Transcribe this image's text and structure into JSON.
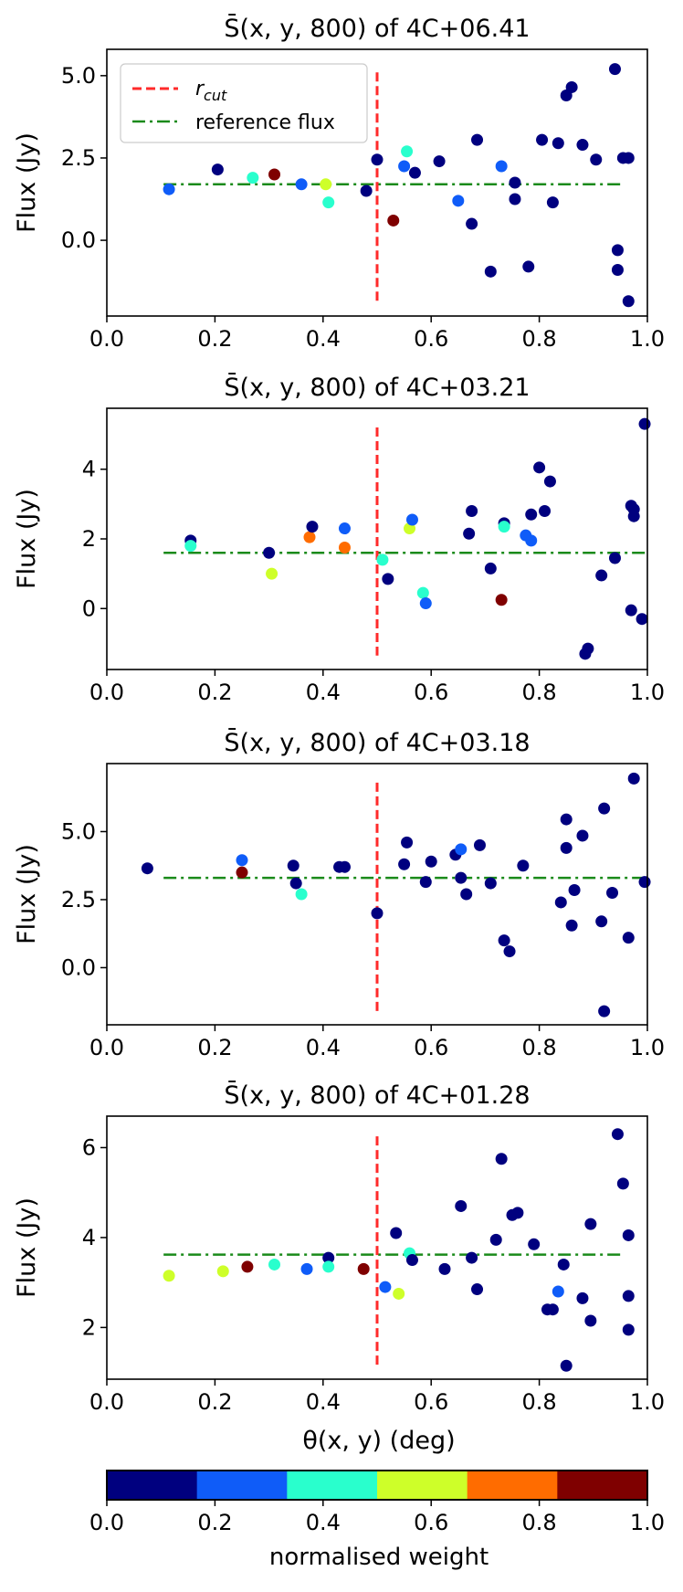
{
  "figure": {
    "xlabel": "θ(x, y) (deg)",
    "legend": {
      "rcut_label": "r",
      "rcut_sub": "cut",
      "ref_label": "reference flux"
    },
    "colorbar": {
      "label": "normalised weight",
      "ticks": [
        "0.0",
        "0.2",
        "0.4",
        "0.6",
        "0.8",
        "1.0"
      ],
      "colors": [
        "#00007f",
        "#0f5cf8",
        "#29ffcd",
        "#ceff29",
        "#ff6c00",
        "#7f0000"
      ]
    },
    "colors": {
      "rcut": "#ff2a2a",
      "reference": "#1a8a1a"
    }
  },
  "chart_data": [
    {
      "type": "scatter",
      "title": "S̄(x, y, 800) of 4C+06.41",
      "ylabel": "Flux (Jy)",
      "xlim": [
        0,
        1
      ],
      "ylim": [
        -2.3,
        5.8
      ],
      "xticks": [
        "0.0",
        "0.2",
        "0.4",
        "0.6",
        "0.8",
        "1.0"
      ],
      "xtick_values": [
        0,
        0.2,
        0.4,
        0.6,
        0.8,
        1.0
      ],
      "yticks": [
        "0.0",
        "2.5",
        "5.0"
      ],
      "ytick_values": [
        0,
        2.5,
        5.0
      ],
      "rcut": 0.5,
      "rcut_range": [
        -1.9,
        5.1
      ],
      "reference_flux": 1.7,
      "reference_range": [
        0.105,
        0.958
      ],
      "show_legend": true,
      "points": [
        {
          "x": 0.115,
          "y": 1.55,
          "w": 0.2
        },
        {
          "x": 0.205,
          "y": 2.15,
          "w": 0.0
        },
        {
          "x": 0.27,
          "y": 1.9,
          "w": 0.4
        },
        {
          "x": 0.31,
          "y": 2.0,
          "w": 1.0
        },
        {
          "x": 0.36,
          "y": 1.7,
          "w": 0.2
        },
        {
          "x": 0.405,
          "y": 1.7,
          "w": 0.6
        },
        {
          "x": 0.41,
          "y": 1.15,
          "w": 0.4
        },
        {
          "x": 0.48,
          "y": 1.5,
          "w": 0.0
        },
        {
          "x": 0.5,
          "y": 2.45,
          "w": 0.0
        },
        {
          "x": 0.53,
          "y": 0.6,
          "w": 1.0
        },
        {
          "x": 0.55,
          "y": 2.25,
          "w": 0.2
        },
        {
          "x": 0.555,
          "y": 2.7,
          "w": 0.4
        },
        {
          "x": 0.57,
          "y": 2.05,
          "w": 0.0
        },
        {
          "x": 0.615,
          "y": 2.4,
          "w": 0.0
        },
        {
          "x": 0.65,
          "y": 1.2,
          "w": 0.2
        },
        {
          "x": 0.675,
          "y": 0.5,
          "w": 0.0
        },
        {
          "x": 0.685,
          "y": 3.05,
          "w": 0.0
        },
        {
          "x": 0.71,
          "y": -0.95,
          "w": 0.0
        },
        {
          "x": 0.73,
          "y": 2.25,
          "w": 0.2
        },
        {
          "x": 0.755,
          "y": 1.75,
          "w": 0.0
        },
        {
          "x": 0.755,
          "y": 1.25,
          "w": 0.0
        },
        {
          "x": 0.78,
          "y": -0.8,
          "w": 0.0
        },
        {
          "x": 0.805,
          "y": 3.05,
          "w": 0.0
        },
        {
          "x": 0.825,
          "y": 1.15,
          "w": 0.0
        },
        {
          "x": 0.835,
          "y": 2.95,
          "w": 0.0
        },
        {
          "x": 0.85,
          "y": 4.4,
          "w": 0.0
        },
        {
          "x": 0.86,
          "y": 4.65,
          "w": 0.0
        },
        {
          "x": 0.88,
          "y": 2.9,
          "w": 0.0
        },
        {
          "x": 0.905,
          "y": 2.45,
          "w": 0.0
        },
        {
          "x": 0.94,
          "y": 5.2,
          "w": 0.0
        },
        {
          "x": 0.945,
          "y": -0.3,
          "w": 0.0
        },
        {
          "x": 0.945,
          "y": -0.9,
          "w": 0.0
        },
        {
          "x": 0.955,
          "y": 2.5,
          "w": 0.0
        },
        {
          "x": 0.965,
          "y": 2.5,
          "w": 0.0
        },
        {
          "x": 0.965,
          "y": -1.85,
          "w": 0.0
        }
      ]
    },
    {
      "type": "scatter",
      "title": "S̄(x, y, 800) of 4C+03.21",
      "ylabel": "Flux (Jy)",
      "xlim": [
        0,
        1
      ],
      "ylim": [
        -1.75,
        5.75
      ],
      "xticks": [
        "0.0",
        "0.2",
        "0.4",
        "0.6",
        "0.8",
        "1.0"
      ],
      "xtick_values": [
        0,
        0.2,
        0.4,
        0.6,
        0.8,
        1.0
      ],
      "yticks": [
        "0",
        "2",
        "4"
      ],
      "ytick_values": [
        0,
        2,
        4
      ],
      "rcut": 0.5,
      "rcut_range": [
        -1.35,
        5.2
      ],
      "reference_flux": 1.6,
      "reference_range": [
        0.105,
        1.0
      ],
      "show_legend": false,
      "points": [
        {
          "x": 0.155,
          "y": 1.95,
          "w": 0.0
        },
        {
          "x": 0.155,
          "y": 1.8,
          "w": 0.4
        },
        {
          "x": 0.3,
          "y": 1.6,
          "w": 0.0
        },
        {
          "x": 0.305,
          "y": 1.0,
          "w": 0.6
        },
        {
          "x": 0.375,
          "y": 2.05,
          "w": 0.8
        },
        {
          "x": 0.38,
          "y": 2.35,
          "w": 0.0
        },
        {
          "x": 0.44,
          "y": 2.3,
          "w": 0.2
        },
        {
          "x": 0.44,
          "y": 1.75,
          "w": 0.8
        },
        {
          "x": 0.51,
          "y": 1.4,
          "w": 0.4
        },
        {
          "x": 0.52,
          "y": 0.85,
          "w": 0.0
        },
        {
          "x": 0.56,
          "y": 2.3,
          "w": 0.6
        },
        {
          "x": 0.565,
          "y": 2.55,
          "w": 0.2
        },
        {
          "x": 0.585,
          "y": 0.45,
          "w": 0.4
        },
        {
          "x": 0.59,
          "y": 0.15,
          "w": 0.2
        },
        {
          "x": 0.67,
          "y": 2.15,
          "w": 0.0
        },
        {
          "x": 0.675,
          "y": 2.8,
          "w": 0.0
        },
        {
          "x": 0.71,
          "y": 1.15,
          "w": 0.0
        },
        {
          "x": 0.73,
          "y": 0.25,
          "w": 1.0
        },
        {
          "x": 0.735,
          "y": 2.45,
          "w": 0.0
        },
        {
          "x": 0.735,
          "y": 2.35,
          "w": 0.4
        },
        {
          "x": 0.775,
          "y": 2.1,
          "w": 0.2
        },
        {
          "x": 0.785,
          "y": 1.95,
          "w": 0.2
        },
        {
          "x": 0.785,
          "y": 2.7,
          "w": 0.0
        },
        {
          "x": 0.8,
          "y": 4.05,
          "w": 0.0
        },
        {
          "x": 0.81,
          "y": 2.8,
          "w": 0.0
        },
        {
          "x": 0.82,
          "y": 3.65,
          "w": 0.0
        },
        {
          "x": 0.885,
          "y": -1.3,
          "w": 0.0
        },
        {
          "x": 0.89,
          "y": -1.15,
          "w": 0.0
        },
        {
          "x": 0.915,
          "y": 0.95,
          "w": 0.0
        },
        {
          "x": 0.94,
          "y": 1.45,
          "w": 0.0
        },
        {
          "x": 0.97,
          "y": 2.95,
          "w": 0.0
        },
        {
          "x": 0.975,
          "y": 2.85,
          "w": 0.0
        },
        {
          "x": 0.975,
          "y": 2.65,
          "w": 0.0
        },
        {
          "x": 0.97,
          "y": -0.05,
          "w": 0.0
        },
        {
          "x": 0.99,
          "y": -0.3,
          "w": 0.0
        },
        {
          "x": 0.995,
          "y": 5.3,
          "w": 0.0
        }
      ]
    },
    {
      "type": "scatter",
      "title": "S̄(x, y, 800) of 4C+03.18",
      "ylabel": "Flux (Jy)",
      "xlim": [
        0,
        1
      ],
      "ylim": [
        -2.1,
        7.5
      ],
      "xticks": [
        "0.0",
        "0.2",
        "0.4",
        "0.6",
        "0.8",
        "1.0"
      ],
      "xtick_values": [
        0,
        0.2,
        0.4,
        0.6,
        0.8,
        1.0
      ],
      "yticks": [
        "0.0",
        "2.5",
        "5.0"
      ],
      "ytick_values": [
        0,
        2.5,
        5.0
      ],
      "rcut": 0.5,
      "rcut_range": [
        -1.65,
        6.8
      ],
      "reference_flux": 3.3,
      "reference_range": [
        0.105,
        1.0
      ],
      "show_legend": false,
      "points": [
        {
          "x": 0.075,
          "y": 3.65,
          "w": 0.0
        },
        {
          "x": 0.25,
          "y": 3.95,
          "w": 0.2
        },
        {
          "x": 0.25,
          "y": 3.5,
          "w": 1.0
        },
        {
          "x": 0.345,
          "y": 3.75,
          "w": 0.0
        },
        {
          "x": 0.35,
          "y": 3.1,
          "w": 0.0
        },
        {
          "x": 0.36,
          "y": 2.7,
          "w": 0.4
        },
        {
          "x": 0.43,
          "y": 3.7,
          "w": 0.0
        },
        {
          "x": 0.44,
          "y": 3.7,
          "w": 0.0
        },
        {
          "x": 0.5,
          "y": 2.0,
          "w": 0.0
        },
        {
          "x": 0.55,
          "y": 3.8,
          "w": 0.0
        },
        {
          "x": 0.555,
          "y": 4.6,
          "w": 0.0
        },
        {
          "x": 0.59,
          "y": 3.15,
          "w": 0.0
        },
        {
          "x": 0.6,
          "y": 3.9,
          "w": 0.0
        },
        {
          "x": 0.645,
          "y": 4.15,
          "w": 0.0
        },
        {
          "x": 0.655,
          "y": 4.35,
          "w": 0.2
        },
        {
          "x": 0.655,
          "y": 3.3,
          "w": 0.0
        },
        {
          "x": 0.665,
          "y": 2.7,
          "w": 0.0
        },
        {
          "x": 0.69,
          "y": 4.5,
          "w": 0.0
        },
        {
          "x": 0.71,
          "y": 3.1,
          "w": 0.0
        },
        {
          "x": 0.735,
          "y": 1.0,
          "w": 0.0
        },
        {
          "x": 0.745,
          "y": 0.6,
          "w": 0.0
        },
        {
          "x": 0.77,
          "y": 3.75,
          "w": 0.0
        },
        {
          "x": 0.84,
          "y": 2.4,
          "w": 0.0
        },
        {
          "x": 0.85,
          "y": 5.45,
          "w": 0.0
        },
        {
          "x": 0.85,
          "y": 4.4,
          "w": 0.0
        },
        {
          "x": 0.86,
          "y": 1.55,
          "w": 0.0
        },
        {
          "x": 0.865,
          "y": 2.85,
          "w": 0.0
        },
        {
          "x": 0.88,
          "y": 4.85,
          "w": 0.0
        },
        {
          "x": 0.915,
          "y": 1.7,
          "w": 0.0
        },
        {
          "x": 0.92,
          "y": 5.85,
          "w": 0.0
        },
        {
          "x": 0.92,
          "y": -1.6,
          "w": 0.0
        },
        {
          "x": 0.935,
          "y": 2.75,
          "w": 0.0
        },
        {
          "x": 0.965,
          "y": 1.1,
          "w": 0.0
        },
        {
          "x": 0.975,
          "y": 6.95,
          "w": 0.0
        },
        {
          "x": 0.995,
          "y": 3.15,
          "w": 0.0
        }
      ]
    },
    {
      "type": "scatter",
      "title": "S̄(x, y, 800) of 4C+01.28",
      "ylabel": "Flux (Jy)",
      "xlim": [
        0,
        1
      ],
      "ylim": [
        0.85,
        6.7
      ],
      "xticks": [
        "0.0",
        "0.2",
        "0.4",
        "0.6",
        "0.8",
        "1.0"
      ],
      "xtick_values": [
        0,
        0.2,
        0.4,
        0.6,
        0.8,
        1.0
      ],
      "yticks": [
        "2",
        "4",
        "6"
      ],
      "ytick_values": [
        2,
        4,
        6
      ],
      "rcut": 0.5,
      "rcut_range": [
        1.1,
        6.25
      ],
      "reference_flux": 3.62,
      "reference_range": [
        0.105,
        0.958
      ],
      "show_legend": false,
      "points": [
        {
          "x": 0.115,
          "y": 3.15,
          "w": 0.6
        },
        {
          "x": 0.215,
          "y": 3.25,
          "w": 0.6
        },
        {
          "x": 0.26,
          "y": 3.35,
          "w": 1.0
        },
        {
          "x": 0.31,
          "y": 3.4,
          "w": 0.4
        },
        {
          "x": 0.37,
          "y": 3.3,
          "w": 0.2
        },
        {
          "x": 0.41,
          "y": 3.55,
          "w": 0.0
        },
        {
          "x": 0.41,
          "y": 3.35,
          "w": 0.4
        },
        {
          "x": 0.475,
          "y": 3.3,
          "w": 1.0
        },
        {
          "x": 0.515,
          "y": 2.9,
          "w": 0.2
        },
        {
          "x": 0.535,
          "y": 4.1,
          "w": 0.0
        },
        {
          "x": 0.54,
          "y": 2.75,
          "w": 0.6
        },
        {
          "x": 0.56,
          "y": 3.65,
          "w": 0.4
        },
        {
          "x": 0.565,
          "y": 3.5,
          "w": 0.0
        },
        {
          "x": 0.625,
          "y": 3.3,
          "w": 0.0
        },
        {
          "x": 0.655,
          "y": 4.7,
          "w": 0.0
        },
        {
          "x": 0.675,
          "y": 3.55,
          "w": 0.0
        },
        {
          "x": 0.685,
          "y": 2.85,
          "w": 0.0
        },
        {
          "x": 0.72,
          "y": 3.95,
          "w": 0.0
        },
        {
          "x": 0.73,
          "y": 5.75,
          "w": 0.0
        },
        {
          "x": 0.75,
          "y": 4.5,
          "w": 0.0
        },
        {
          "x": 0.76,
          "y": 4.55,
          "w": 0.0
        },
        {
          "x": 0.79,
          "y": 3.85,
          "w": 0.0
        },
        {
          "x": 0.815,
          "y": 2.4,
          "w": 0.0
        },
        {
          "x": 0.825,
          "y": 2.4,
          "w": 0.0
        },
        {
          "x": 0.835,
          "y": 2.8,
          "w": 0.2
        },
        {
          "x": 0.845,
          "y": 3.4,
          "w": 0.0
        },
        {
          "x": 0.85,
          "y": 1.15,
          "w": 0.0
        },
        {
          "x": 0.88,
          "y": 2.65,
          "w": 0.0
        },
        {
          "x": 0.895,
          "y": 4.3,
          "w": 0.0
        },
        {
          "x": 0.895,
          "y": 2.15,
          "w": 0.0
        },
        {
          "x": 0.945,
          "y": 6.3,
          "w": 0.0
        },
        {
          "x": 0.955,
          "y": 5.2,
          "w": 0.0
        },
        {
          "x": 0.965,
          "y": 4.05,
          "w": 0.0
        },
        {
          "x": 0.965,
          "y": 2.7,
          "w": 0.0
        },
        {
          "x": 0.965,
          "y": 1.95,
          "w": 0.0
        }
      ]
    }
  ]
}
